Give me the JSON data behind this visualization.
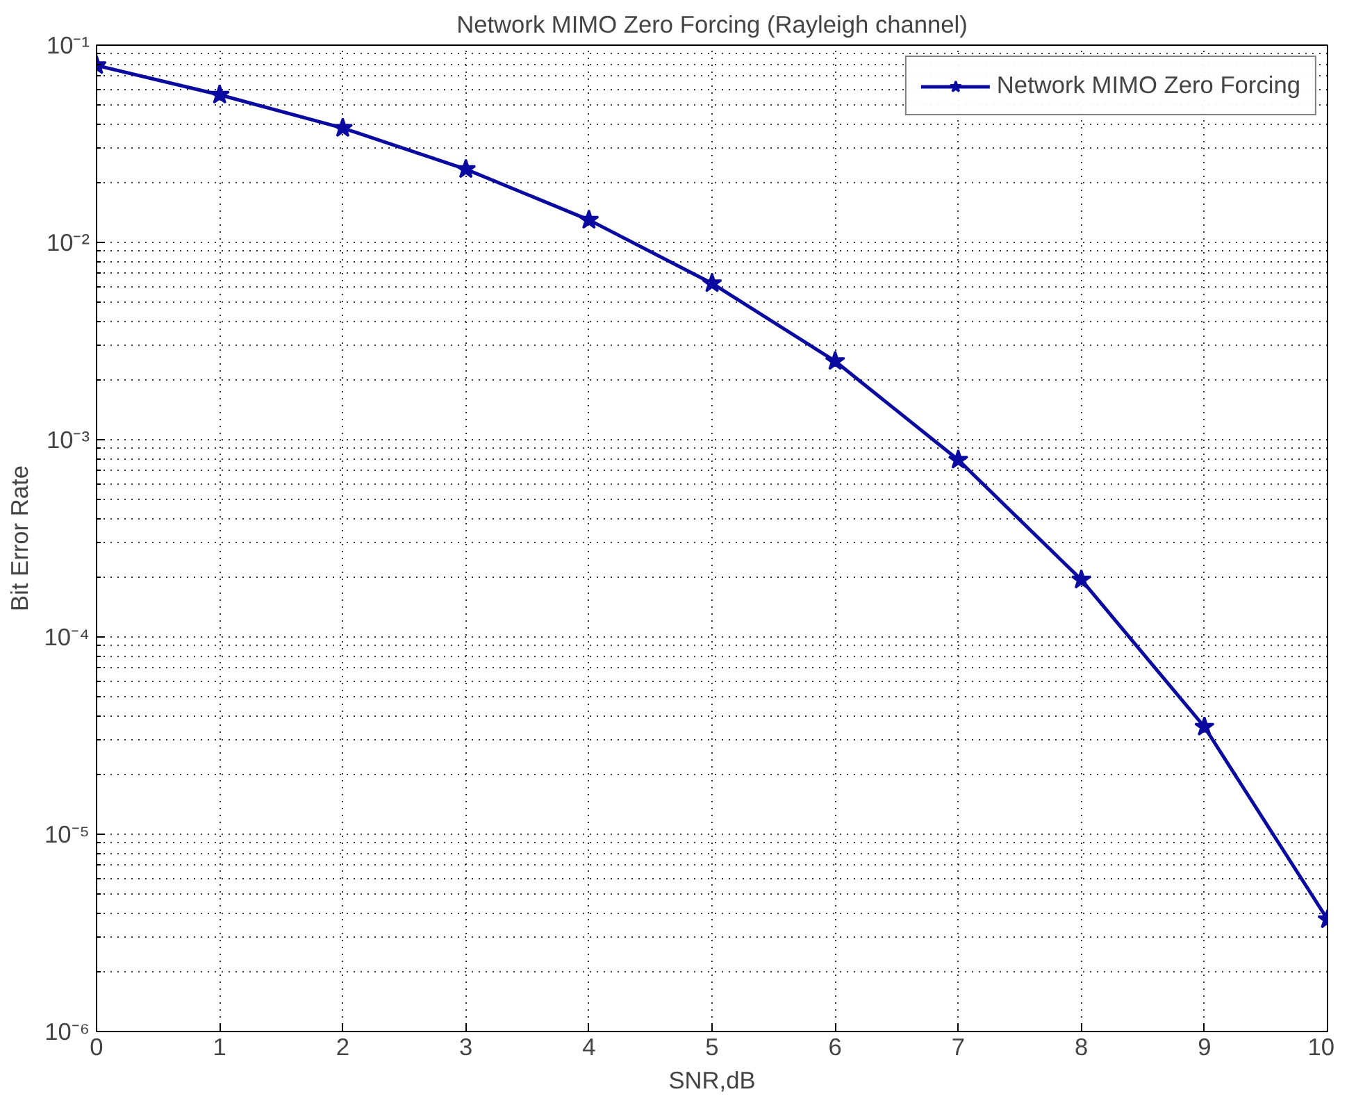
{
  "chart_data": {
    "type": "line",
    "title": "Network MIMO Zero Forcing (Rayleigh channel)",
    "xlabel": "SNR,dB",
    "ylabel": "Bit Error Rate",
    "x": [
      0,
      1,
      2,
      3,
      4,
      5,
      6,
      7,
      8,
      9,
      10
    ],
    "series": [
      {
        "name": "Network MIMO Zero Forcing",
        "color": "#0a0aa0",
        "values": [
          0.079,
          0.056,
          0.038,
          0.0235,
          0.013,
          0.0062,
          0.0025,
          0.00079,
          0.000195,
          3.5e-05,
          3.7e-06
        ]
      }
    ],
    "log": "y",
    "xlim": [
      0,
      10
    ],
    "ylim": [
      1e-06,
      0.1
    ],
    "xticks": [
      0,
      1,
      2,
      3,
      4,
      5,
      6,
      7,
      8,
      9,
      10
    ],
    "yticks": [
      {
        "value": 1e-06,
        "label": "10⁻⁶"
      },
      {
        "value": 1e-05,
        "label": "10⁻⁵"
      },
      {
        "value": 0.0001,
        "label": "10⁻⁴"
      },
      {
        "value": 0.001,
        "label": "10⁻³"
      },
      {
        "value": 0.01,
        "label": "10⁻²"
      },
      {
        "value": 0.1,
        "label": "10⁻¹"
      }
    ],
    "grid": true,
    "legend": "top right",
    "marker": "star",
    "line_style": "solid"
  }
}
